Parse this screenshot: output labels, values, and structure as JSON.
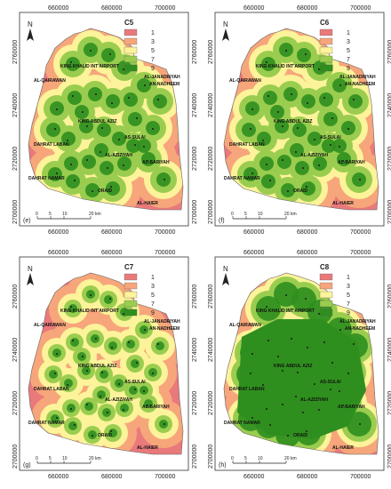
{
  "classes": [
    {
      "label": "1",
      "color": "#e9797b"
    },
    {
      "label": "3",
      "color": "#f6a67a"
    },
    {
      "label": "5",
      "color": "#fcf39a"
    },
    {
      "label": "7",
      "color": "#9acd4f"
    },
    {
      "label": "9",
      "color": "#2f8f1e"
    }
  ],
  "grid": {
    "x_ticks": [
      "660000",
      "680000",
      "700000"
    ],
    "y_ticks": [
      "2760000",
      "2740000",
      "2720000",
      "2700000"
    ]
  },
  "north_label": "N",
  "scalebar": {
    "ticks": [
      "0",
      "5",
      "10",
      "20 km"
    ]
  },
  "places": {
    "airport": "KING KHALID INT'AIRPORT",
    "qairawan": "AL-QAIRAWAN",
    "janadriyah": "AL-JANADRIYAH",
    "nadheem": "AN-NADHEEM",
    "abdulaziz": "KING ABDUL AZIZ",
    "sulai": "AS-SULAI",
    "dahrat_laban": "DAHRAT LABAN",
    "aziziyah": "AL-AZIZIYAH",
    "bariyah": "AL-BARIYAH",
    "dahrat_namar": "DAHRAT NAMAR",
    "oraid": "ORAID",
    "haier": "AL-HAIER"
  },
  "panels": [
    {
      "title": "C5",
      "letter": "(e)",
      "coverage": "moderate"
    },
    {
      "title": "C6",
      "letter": "(f)",
      "coverage": "moderate"
    },
    {
      "title": "C7",
      "letter": "(g)",
      "coverage": "low"
    },
    {
      "title": "C8",
      "letter": "(h)",
      "coverage": "high"
    }
  ]
}
